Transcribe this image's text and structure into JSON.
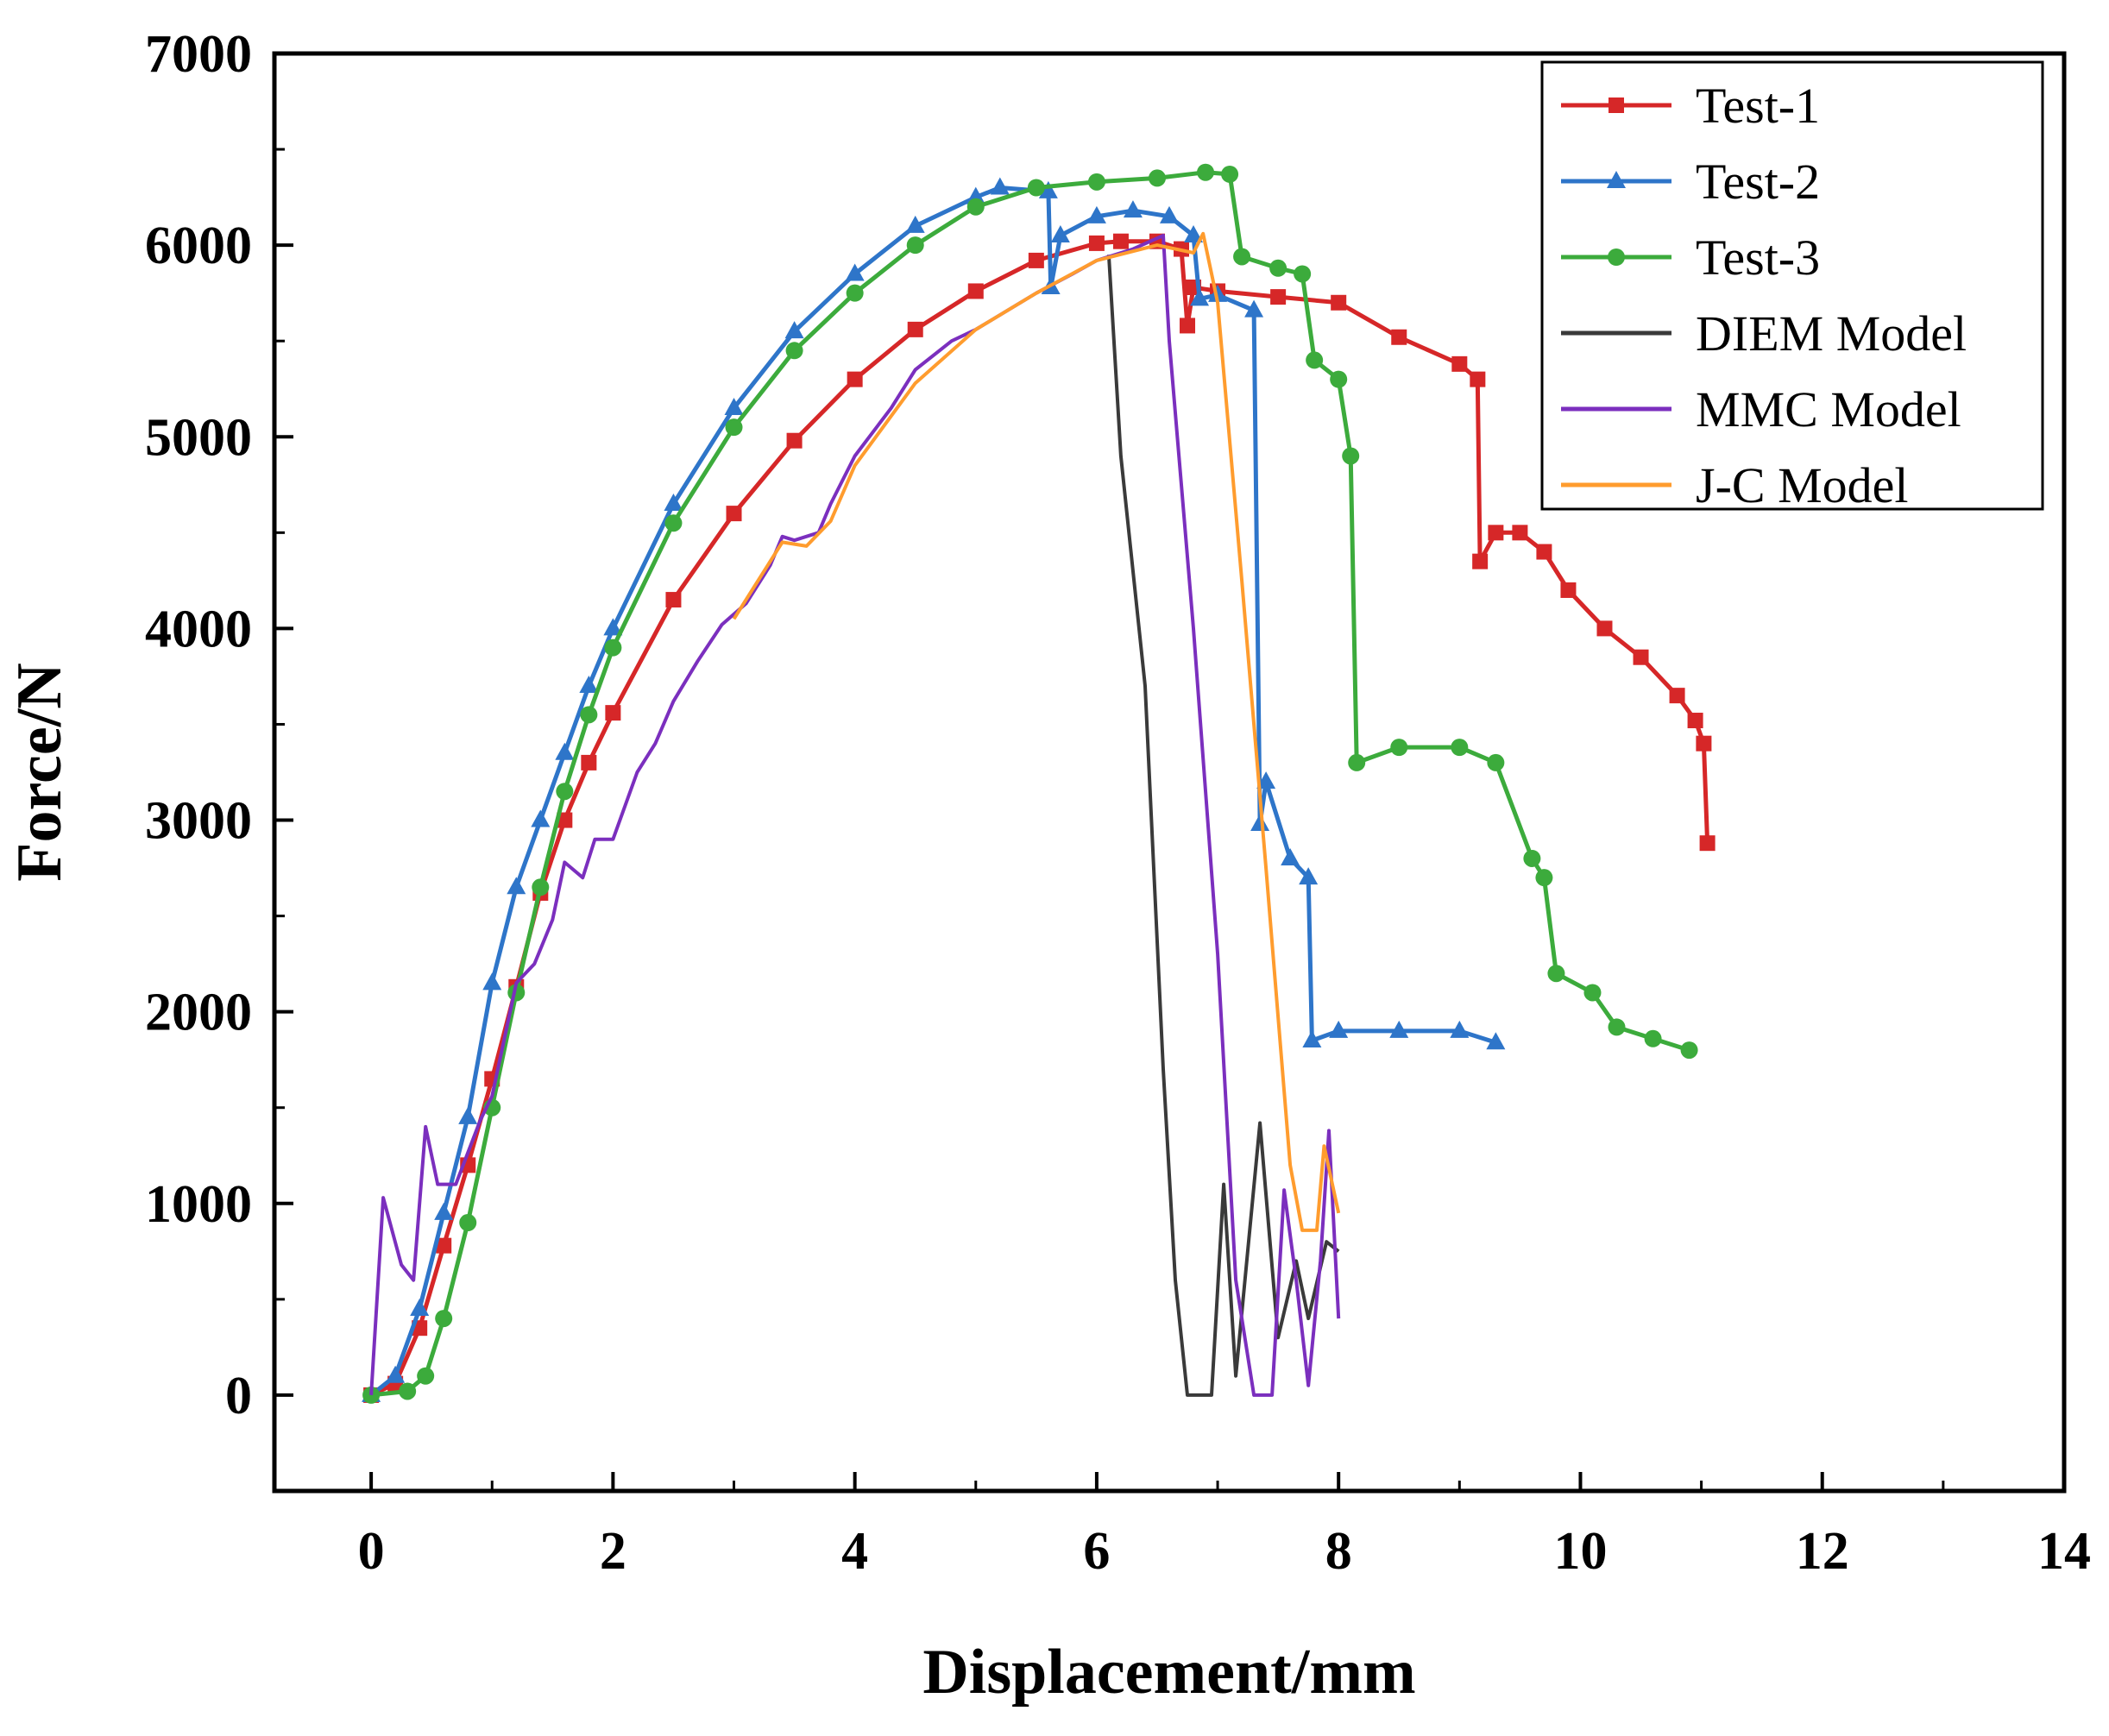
{
  "chart_data": {
    "type": "line",
    "title": "",
    "xlabel": "Displacement/mm",
    "ylabel": "Force/N",
    "xlim": [
      -0.8,
      14
    ],
    "ylim": [
      -500,
      7000
    ],
    "xticks": [
      0,
      2,
      4,
      6,
      8,
      10,
      12,
      14
    ],
    "xtick_labels": [
      "0",
      "2",
      "4",
      "6",
      "8",
      "10",
      "12",
      "14"
    ],
    "yticks": [
      0,
      1000,
      2000,
      3000,
      4000,
      5000,
      6000,
      7000
    ],
    "ytick_labels": [
      "0",
      "1000",
      "2000",
      "3000",
      "4000",
      "5000",
      "6000",
      "7000"
    ],
    "legend_position": "top-right",
    "series": [
      {
        "name": "Test-1",
        "color": "#d62728",
        "marker": "square",
        "points": [
          [
            0,
            0
          ],
          [
            0.2,
            60
          ],
          [
            0.4,
            350
          ],
          [
            0.6,
            780
          ],
          [
            0.8,
            1200
          ],
          [
            1.0,
            1650
          ],
          [
            1.2,
            2130
          ],
          [
            1.4,
            2620
          ],
          [
            1.6,
            3000
          ],
          [
            1.8,
            3300
          ],
          [
            2.0,
            3560
          ],
          [
            2.5,
            4150
          ],
          [
            3.0,
            4600
          ],
          [
            3.5,
            4980
          ],
          [
            4.0,
            5300
          ],
          [
            4.5,
            5560
          ],
          [
            5.0,
            5760
          ],
          [
            5.5,
            5920
          ],
          [
            6.0,
            6010
          ],
          [
            6.2,
            6020
          ],
          [
            6.5,
            6020
          ],
          [
            6.7,
            5980
          ],
          [
            6.75,
            5580
          ],
          [
            6.8,
            5780
          ],
          [
            7.0,
            5760
          ],
          [
            7.5,
            5730
          ],
          [
            8.0,
            5700
          ],
          [
            8.5,
            5520
          ],
          [
            9.0,
            5380
          ],
          [
            9.15,
            5300
          ],
          [
            9.17,
            4350
          ],
          [
            9.3,
            4500
          ],
          [
            9.5,
            4500
          ],
          [
            9.7,
            4400
          ],
          [
            9.9,
            4200
          ],
          [
            10.2,
            4000
          ],
          [
            10.5,
            3850
          ],
          [
            10.8,
            3650
          ],
          [
            10.95,
            3520
          ],
          [
            11.02,
            3400
          ],
          [
            11.05,
            2880
          ]
        ]
      },
      {
        "name": "Test-2",
        "color": "#2e75c9",
        "marker": "triangle",
        "points": [
          [
            0,
            0
          ],
          [
            0.2,
            100
          ],
          [
            0.4,
            450
          ],
          [
            0.6,
            950
          ],
          [
            0.8,
            1450
          ],
          [
            1.0,
            2150
          ],
          [
            1.2,
            2650
          ],
          [
            1.4,
            3000
          ],
          [
            1.6,
            3350
          ],
          [
            1.8,
            3700
          ],
          [
            2.0,
            4000
          ],
          [
            2.5,
            4650
          ],
          [
            3.0,
            5150
          ],
          [
            3.5,
            5550
          ],
          [
            4.0,
            5850
          ],
          [
            4.5,
            6100
          ],
          [
            5.0,
            6250
          ],
          [
            5.2,
            6300
          ],
          [
            5.6,
            6280
          ],
          [
            5.62,
            5780
          ],
          [
            5.7,
            6050
          ],
          [
            6.0,
            6150
          ],
          [
            6.3,
            6180
          ],
          [
            6.6,
            6150
          ],
          [
            6.8,
            6050
          ],
          [
            6.85,
            5720
          ],
          [
            7.0,
            5740
          ],
          [
            7.3,
            5660
          ],
          [
            7.35,
            2980
          ],
          [
            7.4,
            3200
          ],
          [
            7.6,
            2800
          ],
          [
            7.75,
            2700
          ],
          [
            7.78,
            1850
          ],
          [
            8.0,
            1900
          ],
          [
            8.5,
            1900
          ],
          [
            9.0,
            1900
          ],
          [
            9.3,
            1840
          ]
        ]
      },
      {
        "name": "Test-3",
        "color": "#3cab3c",
        "marker": "circle",
        "points": [
          [
            0,
            0
          ],
          [
            0.3,
            20
          ],
          [
            0.45,
            100
          ],
          [
            0.6,
            400
          ],
          [
            0.8,
            900
          ],
          [
            1.0,
            1500
          ],
          [
            1.2,
            2100
          ],
          [
            1.4,
            2650
          ],
          [
            1.6,
            3150
          ],
          [
            1.8,
            3550
          ],
          [
            2.0,
            3900
          ],
          [
            2.5,
            4550
          ],
          [
            3.0,
            5050
          ],
          [
            3.5,
            5450
          ],
          [
            4.0,
            5750
          ],
          [
            4.5,
            6000
          ],
          [
            5.0,
            6200
          ],
          [
            5.5,
            6300
          ],
          [
            6.0,
            6330
          ],
          [
            6.5,
            6350
          ],
          [
            6.9,
            6380
          ],
          [
            7.1,
            6370
          ],
          [
            7.2,
            5940
          ],
          [
            7.5,
            5880
          ],
          [
            7.7,
            5850
          ],
          [
            7.8,
            5400
          ],
          [
            8.0,
            5300
          ],
          [
            8.1,
            4900
          ],
          [
            8.15,
            3300
          ],
          [
            8.5,
            3380
          ],
          [
            9.0,
            3380
          ],
          [
            9.3,
            3300
          ],
          [
            9.6,
            2800
          ],
          [
            9.7,
            2700
          ],
          [
            9.8,
            2200
          ],
          [
            10.1,
            2100
          ],
          [
            10.3,
            1920
          ],
          [
            10.6,
            1860
          ],
          [
            10.9,
            1800
          ]
        ]
      },
      {
        "name": "DIEM Model",
        "color": "#3a3a3a",
        "marker": "none",
        "points": [
          [
            6.1,
            5950
          ],
          [
            6.2,
            4900
          ],
          [
            6.4,
            3700
          ],
          [
            6.55,
            1700
          ],
          [
            6.65,
            600
          ],
          [
            6.75,
            0
          ],
          [
            6.95,
            0
          ],
          [
            7.05,
            1100
          ],
          [
            7.15,
            100
          ],
          [
            7.35,
            1420
          ],
          [
            7.5,
            300
          ],
          [
            7.65,
            700
          ],
          [
            7.75,
            400
          ],
          [
            7.9,
            800
          ],
          [
            8.0,
            750
          ]
        ]
      },
      {
        "name": "MMC Model",
        "color": "#7b2fbe",
        "marker": "none",
        "points": [
          [
            0,
            0
          ],
          [
            0.1,
            1030
          ],
          [
            0.25,
            680
          ],
          [
            0.35,
            600
          ],
          [
            0.45,
            1400
          ],
          [
            0.55,
            1100
          ],
          [
            0.7,
            1100
          ],
          [
            0.9,
            1430
          ],
          [
            1.0,
            1560
          ],
          [
            1.2,
            2150
          ],
          [
            1.35,
            2250
          ],
          [
            1.5,
            2480
          ],
          [
            1.6,
            2780
          ],
          [
            1.75,
            2700
          ],
          [
            1.85,
            2900
          ],
          [
            2.0,
            2900
          ],
          [
            2.2,
            3250
          ],
          [
            2.35,
            3400
          ],
          [
            2.5,
            3620
          ],
          [
            2.7,
            3830
          ],
          [
            2.9,
            4020
          ],
          [
            3.1,
            4130
          ],
          [
            3.3,
            4330
          ],
          [
            3.4,
            4480
          ],
          [
            3.5,
            4460
          ],
          [
            3.7,
            4500
          ],
          [
            3.8,
            4650
          ],
          [
            4.0,
            4900
          ],
          [
            4.3,
            5150
          ],
          [
            4.5,
            5350
          ],
          [
            4.8,
            5500
          ],
          [
            5.0,
            5560
          ],
          [
            5.5,
            5750
          ],
          [
            5.8,
            5850
          ],
          [
            6.0,
            5920
          ],
          [
            6.3,
            5980
          ],
          [
            6.55,
            6050
          ],
          [
            6.6,
            5500
          ],
          [
            6.8,
            4000
          ],
          [
            7.0,
            2300
          ],
          [
            7.15,
            600
          ],
          [
            7.3,
            0
          ],
          [
            7.45,
            0
          ],
          [
            7.55,
            1070
          ],
          [
            7.65,
            600
          ],
          [
            7.75,
            50
          ],
          [
            7.85,
            700
          ],
          [
            7.92,
            1380
          ],
          [
            8.0,
            400
          ]
        ]
      },
      {
        "name": "J-C Model",
        "color": "#ff9c2e",
        "marker": "none",
        "points": [
          [
            3.0,
            4050
          ],
          [
            3.2,
            4250
          ],
          [
            3.4,
            4450
          ],
          [
            3.6,
            4430
          ],
          [
            3.8,
            4560
          ],
          [
            4.0,
            4850
          ],
          [
            4.5,
            5280
          ],
          [
            5.0,
            5560
          ],
          [
            5.5,
            5750
          ],
          [
            6.0,
            5920
          ],
          [
            6.5,
            6000
          ],
          [
            6.8,
            5960
          ],
          [
            6.88,
            6060
          ],
          [
            7.0,
            5700
          ],
          [
            7.2,
            4250
          ],
          [
            7.4,
            2750
          ],
          [
            7.6,
            1200
          ],
          [
            7.7,
            860
          ],
          [
            7.82,
            860
          ],
          [
            7.88,
            1300
          ],
          [
            8.0,
            950
          ]
        ]
      }
    ]
  }
}
